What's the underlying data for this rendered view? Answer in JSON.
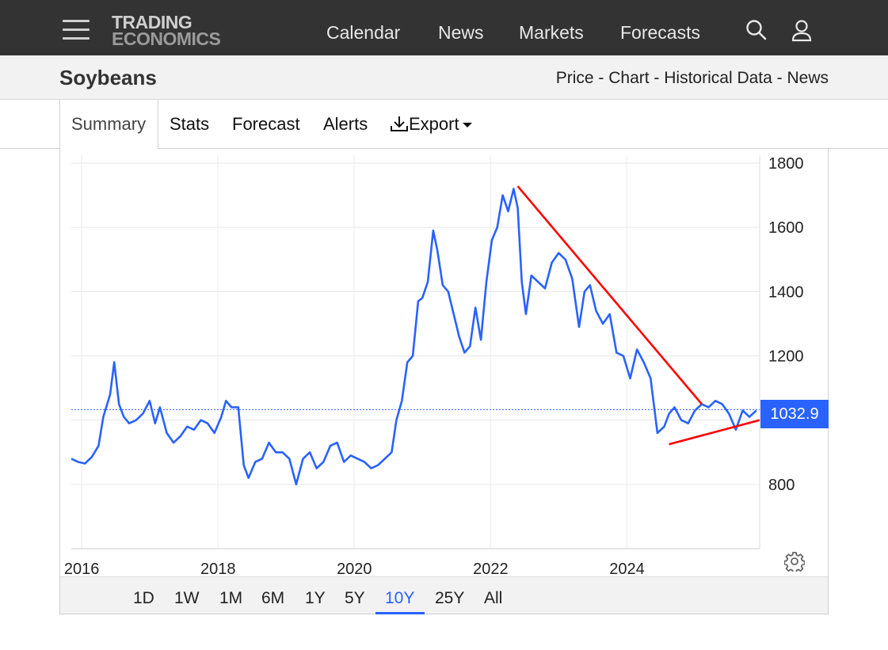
{
  "header": {
    "logo_line1": "TRADING",
    "logo_line2": "ECONOMICS",
    "nav": [
      "Calendar",
      "News",
      "Markets",
      "Forecasts"
    ],
    "icons": [
      "menu-icon",
      "search-icon",
      "user-icon"
    ]
  },
  "titlebar": {
    "title": "Soybeans",
    "breadcrumb": [
      "Price",
      "Chart",
      "Historical Data",
      "News"
    ],
    "separator": " - "
  },
  "tabs": {
    "items": [
      "Summary",
      "Stats",
      "Forecast",
      "Alerts",
      "Export"
    ],
    "active": "Summary"
  },
  "price_label": "1032.9",
  "ranges": {
    "items": [
      "1D",
      "1W",
      "1M",
      "6M",
      "1Y",
      "5Y",
      "10Y",
      "25Y",
      "All"
    ],
    "active": "10Y"
  },
  "colors": {
    "line": "#2962ff",
    "trendline": "#ff0000",
    "topbar": "#333333",
    "accent": "#2962ff"
  },
  "chart_data": {
    "type": "line",
    "title": "",
    "xlabel": "",
    "ylabel": "",
    "x_ticks": [
      "2016",
      "2018",
      "2020",
      "2022",
      "2024"
    ],
    "y_ticks": [
      800,
      1200,
      1400,
      1600,
      1800
    ],
    "ylim": [
      600,
      1800
    ],
    "xlim": [
      2015.85,
      2025.95
    ],
    "grid": true,
    "last_value": 1032.9,
    "series": [
      {
        "x": [
          2015.85,
          2015.95,
          2016.05,
          2016.15,
          2016.25,
          2016.32,
          2016.42,
          2016.48,
          2016.55,
          2016.62,
          2016.7,
          2016.8,
          2016.9,
          2017.0,
          2017.08,
          2017.15,
          2017.25,
          2017.35,
          2017.45,
          2017.55,
          2017.65,
          2017.75,
          2017.85,
          2017.95,
          2018.05,
          2018.12,
          2018.2,
          2018.3,
          2018.38,
          2018.45,
          2018.55,
          2018.65,
          2018.75,
          2018.85,
          2018.95,
          2019.05,
          2019.15,
          2019.25,
          2019.35,
          2019.45,
          2019.55,
          2019.65,
          2019.75,
          2019.85,
          2019.95,
          2020.05,
          2020.15,
          2020.25,
          2020.35,
          2020.45,
          2020.55,
          2020.62,
          2020.7,
          2020.78,
          2020.86,
          2020.94,
          2021.0,
          2021.08,
          2021.16,
          2021.22,
          2021.3,
          2021.38,
          2021.46,
          2021.54,
          2021.62,
          2021.7,
          2021.78,
          2021.86,
          2021.94,
          2022.02,
          2022.1,
          2022.18,
          2022.26,
          2022.34,
          2022.4,
          2022.46,
          2022.52,
          2022.6,
          2022.7,
          2022.8,
          2022.9,
          2023.0,
          2023.1,
          2023.2,
          2023.3,
          2023.38,
          2023.46,
          2023.55,
          2023.65,
          2023.75,
          2023.85,
          2023.95,
          2024.05,
          2024.15,
          2024.25,
          2024.35,
          2024.45,
          2024.55,
          2024.62,
          2024.7,
          2024.8,
          2024.9,
          2025.0,
          2025.1,
          2025.2,
          2025.3,
          2025.4,
          2025.5,
          2025.6,
          2025.7,
          2025.8,
          2025.9
        ],
        "y": [
          880,
          870,
          865,
          885,
          920,
          1010,
          1080,
          1180,
          1050,
          1010,
          990,
          1000,
          1020,
          1060,
          990,
          1040,
          960,
          930,
          950,
          980,
          970,
          1000,
          990,
          960,
          1010,
          1060,
          1040,
          1040,
          860,
          820,
          870,
          880,
          930,
          900,
          900,
          880,
          800,
          880,
          900,
          850,
          870,
          920,
          930,
          870,
          890,
          880,
          870,
          850,
          860,
          880,
          900,
          1000,
          1060,
          1180,
          1200,
          1370,
          1380,
          1430,
          1590,
          1530,
          1420,
          1400,
          1330,
          1260,
          1210,
          1230,
          1350,
          1250,
          1430,
          1560,
          1600,
          1700,
          1650,
          1720,
          1660,
          1430,
          1330,
          1450,
          1430,
          1410,
          1490,
          1520,
          1500,
          1440,
          1290,
          1400,
          1420,
          1340,
          1300,
          1330,
          1210,
          1200,
          1130,
          1220,
          1180,
          1130,
          960,
          980,
          1020,
          1040,
          1000,
          990,
          1030,
          1050,
          1040,
          1060,
          1050,
          1020,
          970,
          1030,
          1010,
          1030
        ]
      }
    ],
    "trendlines": [
      {
        "from": [
          2022.4,
          1728
        ],
        "to": [
          2025.1,
          1050
        ]
      },
      {
        "from": [
          2024.62,
          925
        ],
        "to": [
          2025.95,
          1000
        ]
      }
    ]
  }
}
